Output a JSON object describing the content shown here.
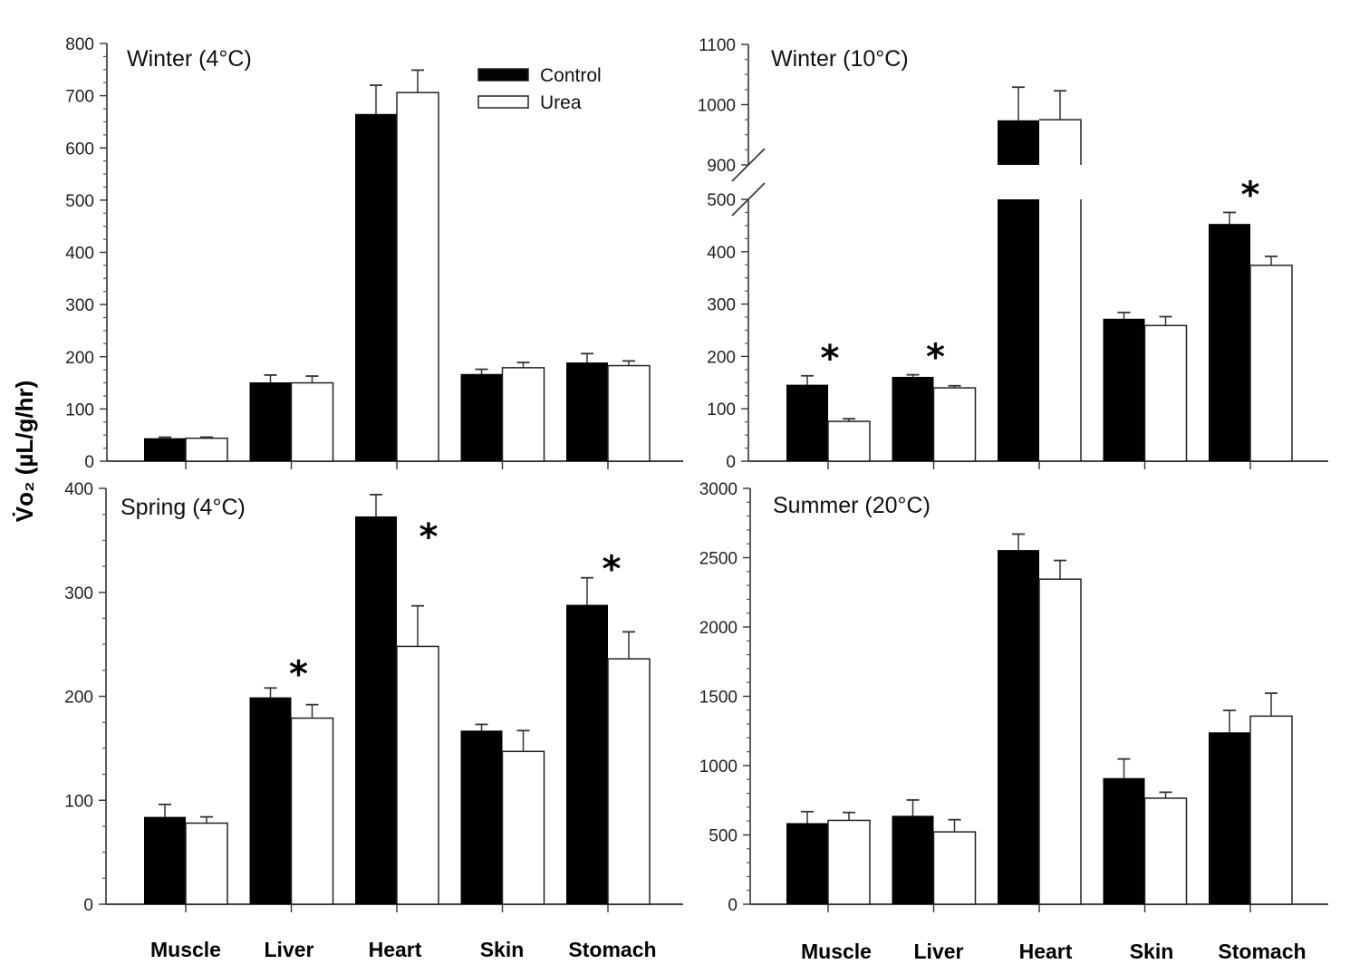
{
  "figure": {
    "ylabel": "V̇o₂ (µL/g/hr)",
    "legend": [
      {
        "label": "Control",
        "color": "#000000"
      },
      {
        "label": "Urea",
        "color": "#ffffff"
      }
    ]
  },
  "chart_data": [
    {
      "type": "bar",
      "title": "Winter (4°C)",
      "categories": [
        "Muscle",
        "Liver",
        "Heart",
        "Skin",
        "Stomach"
      ],
      "ylabel": "V̇o₂ (µL/g/hr)",
      "ylim": [
        0,
        800
      ],
      "yticks": [
        0,
        100,
        200,
        300,
        400,
        500,
        600,
        700,
        800
      ],
      "legend_position": "top-right",
      "series": [
        {
          "name": "Control",
          "values": [
            44,
            151,
            665,
            167,
            189
          ],
          "errors": [
            2,
            14,
            55,
            9,
            17
          ]
        },
        {
          "name": "Urea",
          "values": [
            44,
            150,
            706,
            179,
            183
          ],
          "errors": [
            2,
            13,
            43,
            10,
            9
          ]
        }
      ],
      "significant": []
    },
    {
      "type": "bar",
      "title": "Winter (10°C)",
      "categories": [
        "Muscle",
        "Liver",
        "Heart",
        "Skin",
        "Stomach"
      ],
      "ylabel": "V̇o₂ (µL/g/hr)",
      "ylim": [
        0,
        1100
      ],
      "axis_break": [
        500,
        900
      ],
      "yticks": [
        0,
        100,
        200,
        300,
        400,
        500,
        900,
        1000,
        1100
      ],
      "series": [
        {
          "name": "Control",
          "values": [
            146,
            161,
            974,
            272,
            453
          ],
          "errors": [
            17,
            4,
            55,
            12,
            22
          ]
        },
        {
          "name": "Urea",
          "values": [
            76,
            140,
            975,
            259,
            374
          ],
          "errors": [
            5,
            4,
            48,
            17,
            17
          ]
        }
      ],
      "significant": [
        "Muscle",
        "Liver",
        "Stomach"
      ]
    },
    {
      "type": "bar",
      "title": "Spring (4°C)",
      "categories": [
        "Muscle",
        "Liver",
        "Heart",
        "Skin",
        "Stomach"
      ],
      "xlabel_categories": [
        "Muscle",
        "Liver",
        "Heart",
        "Skin",
        "Stomach"
      ],
      "ylabel": "V̇o₂ (µL/g/hr)",
      "ylim": [
        0,
        400
      ],
      "yticks": [
        0,
        100,
        200,
        300,
        400
      ],
      "series": [
        {
          "name": "Control",
          "values": [
            84,
            199,
            373,
            167,
            288
          ],
          "errors": [
            12,
            9,
            21,
            6,
            26
          ]
        },
        {
          "name": "Urea",
          "values": [
            78,
            179,
            248,
            147,
            236
          ],
          "errors": [
            6,
            13,
            39,
            20,
            26
          ]
        }
      ],
      "significant": [
        "Liver",
        "Heart",
        "Stomach"
      ]
    },
    {
      "type": "bar",
      "title": "Summer (20°C)",
      "categories": [
        "Muscle",
        "Liver",
        "Heart",
        "Skin",
        "Stomach"
      ],
      "ylabel": "V̇o₂ (µL/g/hr)",
      "ylim": [
        0,
        3000
      ],
      "yticks": [
        0,
        500,
        1000,
        1500,
        2000,
        2500,
        3000
      ],
      "series": [
        {
          "name": "Control",
          "values": [
            585,
            638,
            2555,
            910,
            1240
          ],
          "errors": [
            83,
            114,
            115,
            138,
            158
          ]
        },
        {
          "name": "Urea",
          "values": [
            605,
            522,
            2345,
            765,
            1357
          ],
          "errors": [
            57,
            88,
            135,
            43,
            165
          ]
        }
      ],
      "significant": []
    }
  ]
}
